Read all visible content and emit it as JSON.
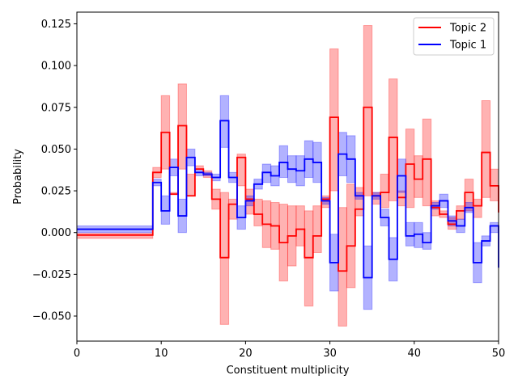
{
  "chart_data": {
    "type": "line",
    "drawstyle": "steps",
    "xlabel": "Constituent multiplicity",
    "ylabel": "Probability",
    "xlim": [
      0,
      50
    ],
    "ylim": [
      -0.065,
      0.132
    ],
    "xticks": [
      0,
      10,
      20,
      30,
      40,
      50
    ],
    "xtick_labels": [
      "0",
      "10",
      "20",
      "30",
      "40",
      "50"
    ],
    "yticks": [
      -0.05,
      -0.025,
      0.0,
      0.025,
      0.05,
      0.075,
      0.1,
      0.125
    ],
    "ytick_labels": [
      "−0.050",
      "−0.025",
      "0.000",
      "0.025",
      "0.050",
      "0.075",
      "0.100",
      "0.125"
    ],
    "grid": false,
    "legend_position": "top-right",
    "bin_edges": [
      0,
      9,
      10,
      11,
      12,
      13,
      14,
      15,
      16,
      17,
      18,
      19,
      20,
      21,
      22,
      23,
      24,
      25,
      26,
      27,
      28,
      29,
      30,
      31,
      32,
      33,
      34,
      35,
      36,
      37,
      38,
      39,
      40,
      41,
      42,
      43,
      44,
      45,
      46,
      47,
      48,
      49,
      50
    ],
    "series": [
      {
        "name": "Topic 2",
        "color": "#ff0000",
        "band_color": "#ff0000",
        "values": [
          -0.0015,
          0.036,
          0.06,
          0.023,
          0.064,
          0.022,
          0.038,
          0.035,
          0.02,
          -0.015,
          0.017,
          0.045,
          0.02,
          0.011,
          0.005,
          0.004,
          -0.006,
          -0.002,
          0.002,
          -0.015,
          -0.002,
          0.02,
          0.069,
          -0.023,
          -0.008,
          0.014,
          0.075,
          0.022,
          0.024,
          0.057,
          0.021,
          0.041,
          0.032,
          0.044,
          0.015,
          0.011,
          0.005,
          0.013,
          0.024,
          0.016,
          0.048,
          0.028,
          0.012
        ],
        "lower": [
          -0.0035,
          0.033,
          0.038,
          0.023,
          0.038,
          0.022,
          0.038,
          0.033,
          0.014,
          -0.055,
          0.008,
          0.028,
          0.011,
          0.004,
          -0.009,
          -0.01,
          -0.029,
          -0.02,
          -0.008,
          -0.044,
          -0.012,
          0.015,
          0.025,
          -0.056,
          -0.033,
          0.01,
          0.022,
          0.017,
          0.015,
          0.019,
          0.016,
          0.015,
          0.021,
          0.016,
          0.01,
          0.009,
          0.002,
          0.008,
          0.013,
          0.009,
          0.021,
          0.019,
          0.01
        ],
        "upper": [
          -0.0005,
          0.039,
          0.082,
          0.024,
          0.089,
          0.035,
          0.04,
          0.037,
          0.026,
          0.024,
          0.02,
          0.047,
          0.026,
          0.02,
          0.019,
          0.018,
          0.017,
          0.016,
          0.016,
          0.013,
          0.016,
          0.022,
          0.11,
          0.015,
          0.029,
          0.027,
          0.124,
          0.024,
          0.035,
          0.092,
          0.025,
          0.062,
          0.046,
          0.068,
          0.019,
          0.013,
          0.009,
          0.016,
          0.032,
          0.02,
          0.079,
          0.038,
          0.045
        ]
      },
      {
        "name": "Topic 1",
        "color": "#0000ff",
        "band_color": "#0000ff",
        "values": [
          0.002,
          0.03,
          0.013,
          0.039,
          0.01,
          0.045,
          0.036,
          0.035,
          0.033,
          0.067,
          0.033,
          0.009,
          0.019,
          0.029,
          0.036,
          0.034,
          0.042,
          0.038,
          0.037,
          0.044,
          0.042,
          0.019,
          -0.018,
          0.047,
          0.044,
          0.022,
          -0.027,
          0.022,
          0.009,
          -0.016,
          0.034,
          -0.002,
          -0.001,
          -0.006,
          0.016,
          0.019,
          0.007,
          0.004,
          0.015,
          -0.018,
          -0.005,
          0.004,
          -0.021
        ],
        "lower": [
          0.0,
          0.028,
          0.005,
          0.034,
          0.0,
          0.04,
          0.034,
          0.034,
          0.031,
          0.051,
          0.03,
          0.002,
          0.016,
          0.026,
          0.03,
          0.028,
          0.033,
          0.03,
          0.028,
          0.033,
          0.03,
          0.017,
          -0.035,
          0.034,
          0.03,
          0.02,
          -0.046,
          0.02,
          0.004,
          -0.029,
          0.024,
          -0.008,
          -0.009,
          -0.01,
          0.014,
          0.015,
          0.004,
          0.0,
          0.012,
          -0.03,
          -0.008,
          0.0,
          -0.022
        ],
        "upper": [
          0.004,
          0.032,
          0.022,
          0.044,
          0.02,
          0.05,
          0.038,
          0.036,
          0.035,
          0.082,
          0.036,
          0.016,
          0.022,
          0.032,
          0.041,
          0.04,
          0.052,
          0.046,
          0.046,
          0.055,
          0.054,
          0.021,
          -0.001,
          0.06,
          0.058,
          0.024,
          -0.008,
          0.024,
          0.014,
          -0.003,
          0.044,
          0.006,
          0.006,
          0.0,
          0.018,
          0.023,
          0.01,
          0.008,
          0.018,
          -0.006,
          -0.002,
          0.006,
          -0.02
        ]
      }
    ]
  }
}
